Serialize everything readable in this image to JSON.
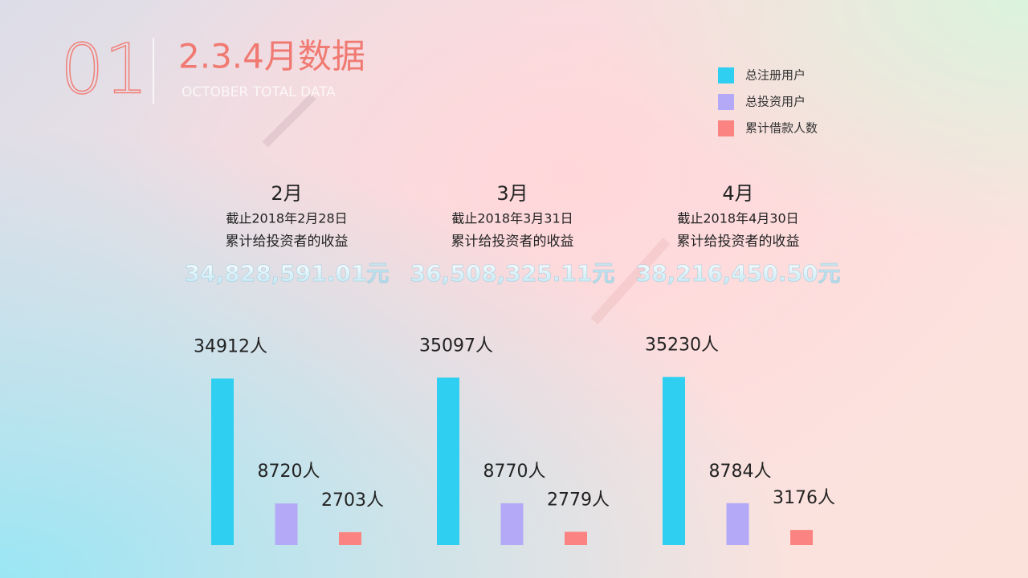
{
  "header": {
    "number": "01",
    "title": "2.3.4月数据",
    "subtitle": "OCTOBER TOTAL DATA"
  },
  "chart_data": {
    "type": "bar",
    "categories": [
      "2月",
      "3月",
      "4月"
    ],
    "dates": [
      "截止2018年2月28日",
      "截止2018年3月31日",
      "截止2018年4月30日"
    ],
    "captions": [
      "累计给投资者的收益",
      "累计给投资者的收益",
      "累计给投资者的收益"
    ],
    "amounts": [
      "34,828,591.01元",
      "36,508,325.11元",
      "38,216,450.50元"
    ],
    "series": [
      {
        "name": "总注册用户",
        "color": "#2ecff0",
        "values": [
          34912,
          35097,
          35230
        ],
        "value_labels": [
          "34912人",
          "35097人",
          "35230人"
        ]
      },
      {
        "name": "总投资用户",
        "color": "#b3a9f7",
        "values": [
          8720,
          8770,
          8784
        ],
        "value_labels": [
          "8720人",
          "8770人",
          "8784人"
        ]
      },
      {
        "name": "累计借款人数",
        "color": "#fb8482",
        "values": [
          2703,
          2779,
          3176
        ],
        "value_labels": [
          "2703人",
          "2779人",
          "3176人"
        ]
      }
    ]
  }
}
